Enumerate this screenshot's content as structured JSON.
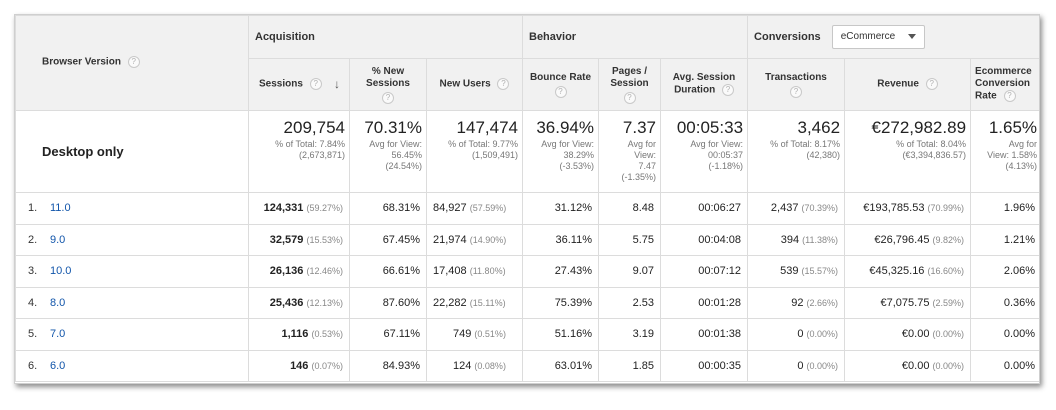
{
  "header": {
    "browser_version": "Browser Version",
    "groups": {
      "acquisition": "Acquisition",
      "behavior": "Behavior",
      "conversions": "Conversions",
      "conversions_dropdown": "eCommerce"
    },
    "columns": {
      "sessions": "Sessions",
      "new_sessions": "% New Sessions",
      "new_users": "New Users",
      "bounce_rate": "Bounce Rate",
      "pages_session": "Pages / Session",
      "avg_duration": "Avg. Session Duration",
      "transactions": "Transactions",
      "revenue": "Revenue",
      "conversion_rate": "Ecommerce Conversion Rate"
    },
    "help_glyph": "?"
  },
  "totals": {
    "label": "Desktop only",
    "sessions": {
      "value": "209,754",
      "l1": "% of Total: 7.84%",
      "l2": "(2,673,871)"
    },
    "new_sessions": {
      "value": "70.31%",
      "l1": "Avg for View:",
      "l2": "56.45%",
      "l3": "(24.54%)"
    },
    "new_users": {
      "value": "147,474",
      "l1": "% of Total: 9.77%",
      "l2": "(1,509,491)"
    },
    "bounce_rate": {
      "value": "36.94%",
      "l1": "Avg for View:",
      "l2": "38.29%",
      "l3": "(-3.53%)"
    },
    "pages_session": {
      "value": "7.37",
      "l1": "Avg for",
      "l2": "View:",
      "l3": "7.47",
      "l4": "(-1.35%)"
    },
    "avg_duration": {
      "value": "00:05:33",
      "l1": "Avg for View:",
      "l2": "00:05:37",
      "l3": "(-1.18%)"
    },
    "transactions": {
      "value": "3,462",
      "l1": "% of Total: 8.17%",
      "l2": "(42,380)"
    },
    "revenue": {
      "value": "€272,982.89",
      "l1": "% of Total: 8.04%",
      "l2": "(€3,394,836.57)"
    },
    "conversion_rate": {
      "value": "1.65%",
      "l1": "Avg for",
      "l2": "View: 1.58%",
      "l3": "(4.13%)"
    }
  },
  "rows": [
    {
      "idx": "1.",
      "name": "11.0",
      "sessions": "124,331",
      "sessions_pct": "(59.27%)",
      "new_sessions": "68.31%",
      "new_users": "84,927",
      "new_users_pct": "(57.59%)",
      "bounce": "31.12%",
      "pages": "8.48",
      "duration": "00:06:27",
      "transactions": "2,437",
      "transactions_pct": "(70.39%)",
      "revenue": "€193,785.53",
      "revenue_pct": "(70.99%)",
      "conv": "1.96%"
    },
    {
      "idx": "2.",
      "name": "9.0",
      "sessions": "32,579",
      "sessions_pct": "(15.53%)",
      "new_sessions": "67.45%",
      "new_users": "21,974",
      "new_users_pct": "(14.90%)",
      "bounce": "36.11%",
      "pages": "5.75",
      "duration": "00:04:08",
      "transactions": "394",
      "transactions_pct": "(11.38%)",
      "revenue": "€26,796.45",
      "revenue_pct": "(9.82%)",
      "conv": "1.21%"
    },
    {
      "idx": "3.",
      "name": "10.0",
      "sessions": "26,136",
      "sessions_pct": "(12.46%)",
      "new_sessions": "66.61%",
      "new_users": "17,408",
      "new_users_pct": "(11.80%)",
      "bounce": "27.43%",
      "pages": "9.07",
      "duration": "00:07:12",
      "transactions": "539",
      "transactions_pct": "(15.57%)",
      "revenue": "€45,325.16",
      "revenue_pct": "(16.60%)",
      "conv": "2.06%"
    },
    {
      "idx": "4.",
      "name": "8.0",
      "sessions": "25,436",
      "sessions_pct": "(12.13%)",
      "new_sessions": "87.60%",
      "new_users": "22,282",
      "new_users_pct": "(15.11%)",
      "bounce": "75.39%",
      "pages": "2.53",
      "duration": "00:01:28",
      "transactions": "92",
      "transactions_pct": "(2.66%)",
      "revenue": "€7,075.75",
      "revenue_pct": "(2.59%)",
      "conv": "0.36%"
    },
    {
      "idx": "5.",
      "name": "7.0",
      "sessions": "1,116",
      "sessions_pct": "(0.53%)",
      "new_sessions": "67.11%",
      "new_users": "749",
      "new_users_pct": "(0.51%)",
      "bounce": "51.16%",
      "pages": "3.19",
      "duration": "00:01:38",
      "transactions": "0",
      "transactions_pct": "(0.00%)",
      "revenue": "€0.00",
      "revenue_pct": "(0.00%)",
      "conv": "0.00%"
    },
    {
      "idx": "6.",
      "name": "6.0",
      "sessions": "146",
      "sessions_pct": "(0.07%)",
      "new_sessions": "84.93%",
      "new_users": "124",
      "new_users_pct": "(0.08%)",
      "bounce": "63.01%",
      "pages": "1.85",
      "duration": "00:00:35",
      "transactions": "0",
      "transactions_pct": "(0.00%)",
      "revenue": "€0.00",
      "revenue_pct": "(0.00%)",
      "conv": "0.00%"
    }
  ],
  "colors": {
    "link": "#1155aa",
    "header_bg": "#f1f1f1",
    "border": "#dcdcdc"
  },
  "icons": {
    "help": "question-circle-icon",
    "sort": "arrow-down-icon",
    "dropdown": "chevron-down-icon"
  }
}
